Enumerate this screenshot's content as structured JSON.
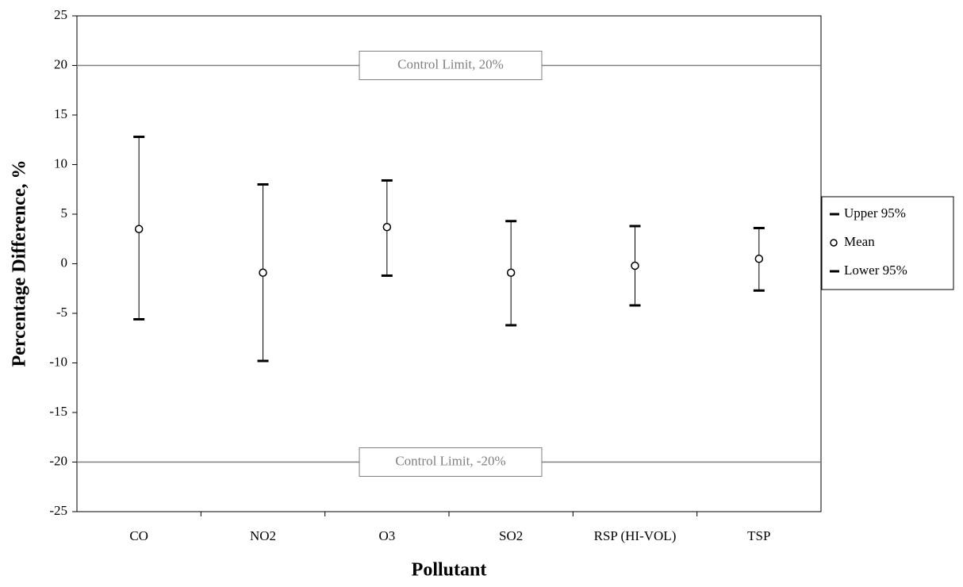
{
  "chart_data": {
    "type": "errorbar",
    "xlabel": "Pollutant",
    "ylabel": "Percentage Difference, %",
    "categories": [
      "CO",
      "NO2",
      "O3",
      "SO2",
      "RSP (HI-VOL)",
      "TSP"
    ],
    "series": [
      {
        "name": "Upper 95%",
        "color": "#000000",
        "values": [
          12.8,
          8.0,
          8.4,
          4.3,
          3.8,
          3.6
        ]
      },
      {
        "name": "Mean",
        "color": "#000000",
        "values": [
          3.5,
          -0.9,
          3.7,
          -0.9,
          -0.2,
          0.5
        ]
      },
      {
        "name": "Lower 95%",
        "color": "#000000",
        "values": [
          -5.6,
          -9.8,
          -1.2,
          -6.2,
          -4.2,
          -2.7
        ]
      }
    ],
    "control_limits": [
      {
        "value": 20,
        "label": "Control Limit, 20%"
      },
      {
        "value": -20,
        "label": "Control Limit, -20%"
      }
    ],
    "ylim": [
      -25,
      25
    ],
    "yticks": [
      -25,
      -20,
      -15,
      -10,
      -5,
      0,
      5,
      10,
      15,
      20,
      25
    ],
    "legend": "right"
  }
}
